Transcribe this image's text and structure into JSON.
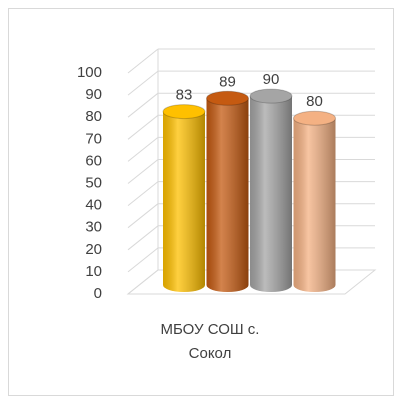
{
  "chart_data": {
    "type": "bar3d",
    "categories": [
      "МБОУ СОШ с. Сокол"
    ],
    "series": [
      {
        "color": "#ffc000",
        "values": [
          83
        ]
      },
      {
        "color": "#c55a11",
        "values": [
          89
        ]
      },
      {
        "color": "#a5a5a5",
        "values": [
          90
        ]
      },
      {
        "color": "#f4b183",
        "values": [
          80
        ]
      }
    ],
    "ylim": [
      0,
      100
    ],
    "yticks": [
      0,
      10,
      20,
      30,
      40,
      50,
      60,
      70,
      80,
      90,
      100
    ],
    "grid": true
  }
}
